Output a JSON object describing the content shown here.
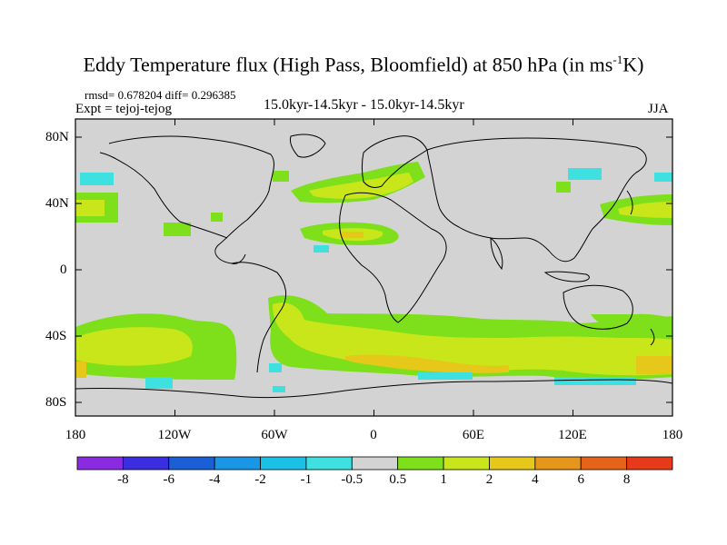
{
  "title": {
    "main": "Eddy Temperature flux (High Pass, Bloomfield) at 850 hPa (in ms",
    "sup": "-1",
    "end": "K)"
  },
  "stats": "rmsd= 0.678204 diff= 0.296385",
  "experiment": "Expt = tejoj-tejog",
  "period": "15.0kyr-14.5kyr - 15.0kyr-14.5kyr",
  "season": "JJA",
  "lat_labels": [
    "80N",
    "40N",
    "0",
    "40S",
    "80S"
  ],
  "lon_labels": [
    "180",
    "120W",
    "60W",
    "0",
    "60E",
    "120E",
    "180"
  ],
  "colorbar": {
    "labels": [
      "-8",
      "-6",
      "-4",
      "-2",
      "-1",
      "-0.5",
      "0.5",
      "1",
      "2",
      "4",
      "6",
      "8"
    ],
    "colors": [
      "#8a2be2",
      "#3a2ee0",
      "#1a5fd6",
      "#1a96e6",
      "#1ac0e6",
      "#3fe0e0",
      "#d3d3d3",
      "#7de01a",
      "#c8e61a",
      "#e6c81a",
      "#e6961a",
      "#e6641a",
      "#e63a1a"
    ]
  },
  "colors": {
    "missing": "#d3d3d3",
    "weak_pos": "#7de01a",
    "mid_pos": "#c8e61a",
    "strong_pos": "#e6c81a",
    "stronger_pos": "#e6961a",
    "weak_neg": "#3fe0e0"
  }
}
